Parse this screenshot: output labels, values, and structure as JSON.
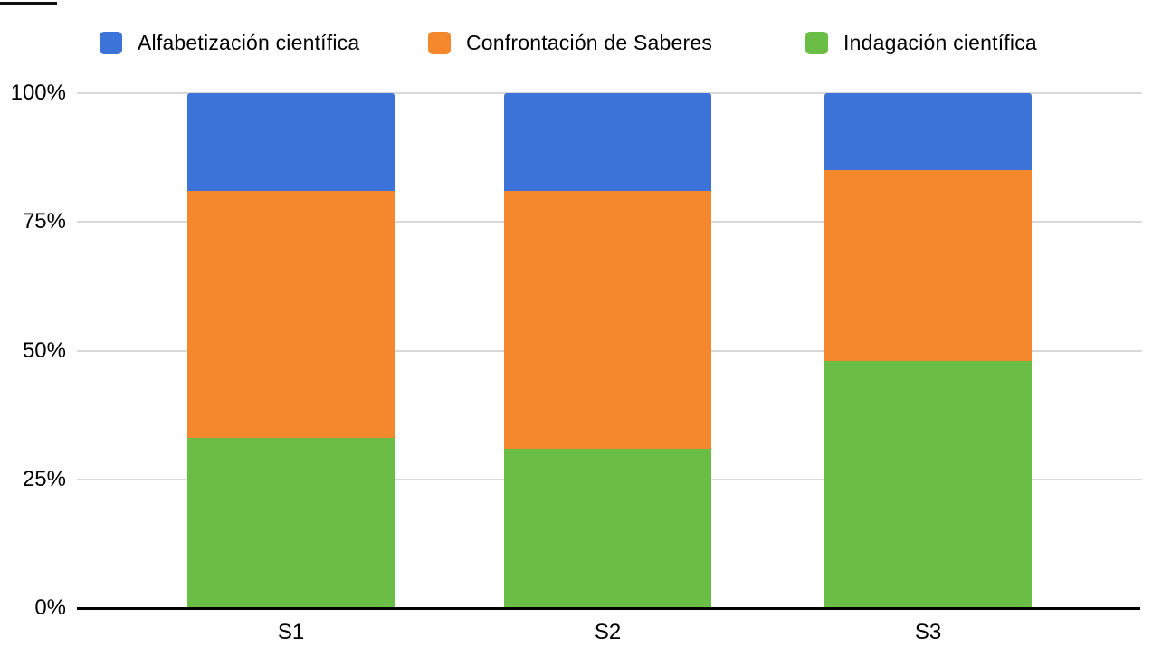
{
  "chart_data": {
    "type": "bar",
    "stacked": true,
    "percent_stacked": true,
    "title": "",
    "xlabel": "",
    "ylabel": "",
    "categories": [
      "S1",
      "S2",
      "S3"
    ],
    "series": [
      {
        "name": "Alfabetización científica",
        "color": "#3C73D9",
        "values": [
          19,
          19,
          15
        ]
      },
      {
        "name": "Confrontación de Saberes",
        "color": "#F5872D",
        "values": [
          48,
          50,
          37
        ]
      },
      {
        "name": "Indagación científica",
        "color": "#6BBE45",
        "values": [
          33,
          31,
          48
        ]
      }
    ],
    "stack_order_bottom_to_top": [
      "Indagación científica",
      "Confrontación de Saberes",
      "Alfabetización científica"
    ],
    "y_ticks": [
      {
        "label": "100%",
        "value": 100
      },
      {
        "label": "75%",
        "value": 75
      },
      {
        "label": "50%",
        "value": 50
      },
      {
        "label": "25%",
        "value": 25
      },
      {
        "label": "0%",
        "value": 0
      }
    ],
    "ylim": [
      0,
      100
    ],
    "grid": true,
    "legend_position": "top"
  },
  "colors": {
    "background": "#FFFFFF",
    "gridline": "#D9D9D9",
    "axis": "#000000",
    "text": "#000000"
  }
}
